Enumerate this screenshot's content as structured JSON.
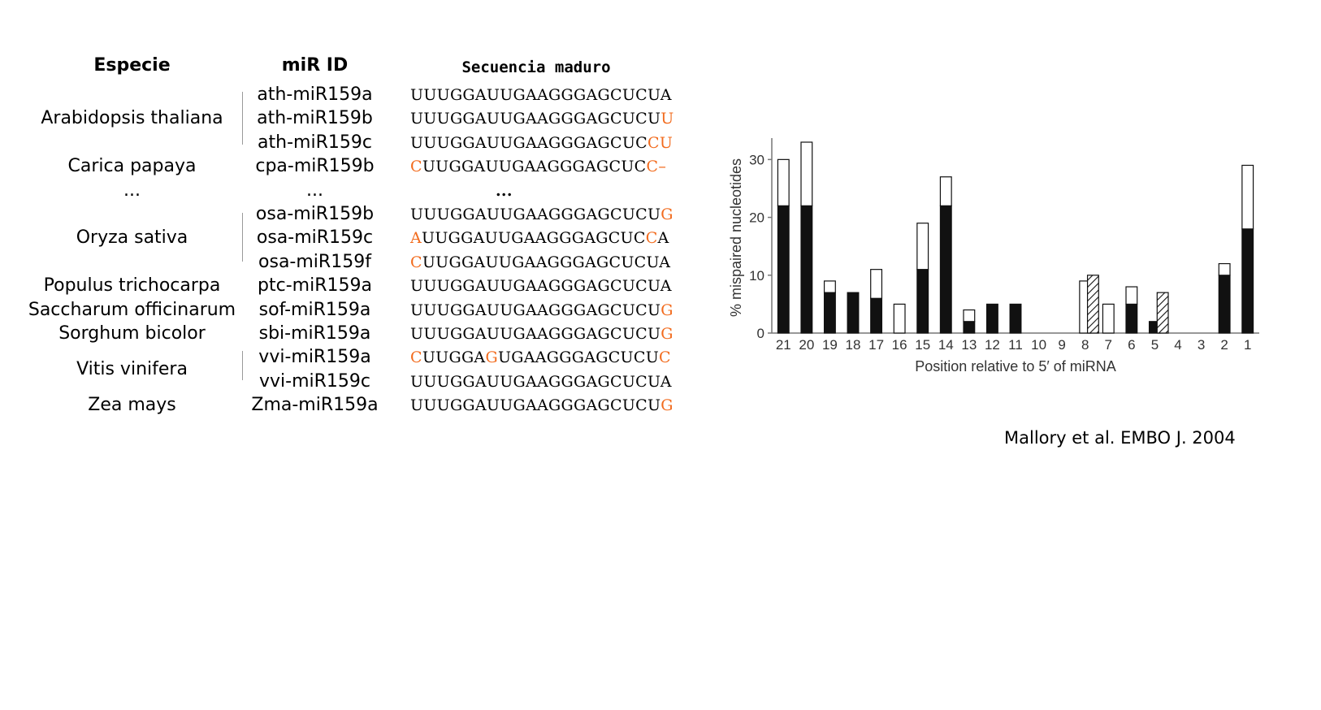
{
  "table": {
    "headers": {
      "species": "Especie",
      "mirid": "miR ID",
      "sequence": "Secuencia maduro"
    },
    "species": [
      {
        "name": "Arabidopsis thaliana",
        "row": 1
      },
      {
        "name": "Carica papaya",
        "row": 3
      },
      {
        "name": "...",
        "row": 4
      },
      {
        "name": "Oryza sativa",
        "row": 6
      },
      {
        "name": "Populus trichocarpa",
        "row": 8
      },
      {
        "name": "Saccharum officinarum",
        "row": 9
      },
      {
        "name": "Sorghum bicolor",
        "row": 10
      },
      {
        "name": "Vitis vinifera",
        "row": 11.5
      },
      {
        "name": "Zea mays",
        "row": 13
      }
    ],
    "rows": [
      {
        "id": "ath-miR159a",
        "seq": [
          [
            "UUUGGAUUGAAGGGAGCUCUA",
            false
          ]
        ]
      },
      {
        "id": "ath-miR159b",
        "seq": [
          [
            "UUUGGAUUGAAGGGAGCUCU",
            false
          ],
          [
            "U",
            true
          ]
        ]
      },
      {
        "id": "ath-miR159c",
        "seq": [
          [
            "UUUGGAUUGAAGGGAGCUC",
            false
          ],
          [
            "CU",
            true
          ]
        ]
      },
      {
        "id": "cpa-miR159b",
        "seq": [
          [
            "C",
            true
          ],
          [
            "UUGGAUUGAAGGGAGCUC",
            false
          ],
          [
            "C–",
            true
          ]
        ]
      },
      {
        "id": "...",
        "seq": [
          [
            "...",
            false
          ]
        ]
      },
      {
        "id": "osa-miR159b",
        "seq": [
          [
            "UUUGGAUUGAAGGGAGCUCU",
            false
          ],
          [
            "G",
            true
          ]
        ]
      },
      {
        "id": "osa-miR159c",
        "seq": [
          [
            "A",
            true
          ],
          [
            "UUGGAUUGAAGGGAGCUC",
            false
          ],
          [
            "C",
            true
          ],
          [
            "A",
            false
          ]
        ]
      },
      {
        "id": "osa-miR159f",
        "seq": [
          [
            "C",
            true
          ],
          [
            "UUGGAUUGAAGGGAGCUCUA",
            false
          ]
        ]
      },
      {
        "id": "ptc-miR159a",
        "seq": [
          [
            "UUUGGAUUGAAGGGAGCUCUA",
            false
          ]
        ]
      },
      {
        "id": "sof-miR159a",
        "seq": [
          [
            "UUUGGAUUGAAGGGAGCUCU",
            false
          ],
          [
            "G",
            true
          ]
        ]
      },
      {
        "id": "sbi-miR159a",
        "seq": [
          [
            "UUUGGAUUGAAGGGAGCUCU",
            false
          ],
          [
            "G",
            true
          ]
        ]
      },
      {
        "id": "vvi-miR159a",
        "seq": [
          [
            "C",
            true
          ],
          [
            "UUGGA",
            false
          ],
          [
            "G",
            true
          ],
          [
            "UGAAGGGAGCUCU",
            false
          ],
          [
            "C",
            true
          ]
        ]
      },
      {
        "id": "vvi-miR159c",
        "seq": [
          [
            "UUUGGAUUGAAGGGAGCUCUA",
            false
          ]
        ]
      },
      {
        "id": "Zma-miR159a",
        "seq": [
          [
            "UUUGGAUUGAAGGGAGCUCU",
            false
          ],
          [
            "G",
            true
          ]
        ]
      }
    ],
    "highlight_color": "#f26b1d"
  },
  "chart_data": {
    "type": "bar",
    "xlabel": "Position relative to 5′ of miRNA",
    "ylabel": "% mispaired nucleotides",
    "ylim": [
      0,
      33
    ],
    "yticks": [
      0,
      10,
      20,
      30
    ],
    "categories": [
      "21",
      "20",
      "19",
      "18",
      "17",
      "16",
      "15",
      "14",
      "13",
      "12",
      "11",
      "10",
      "9",
      "8",
      "7",
      "6",
      "5",
      "4",
      "3",
      "2",
      "1"
    ],
    "series": [
      {
        "fill": "black",
        "values": [
          22,
          22,
          7,
          7,
          6,
          0,
          11,
          22,
          2,
          5,
          5,
          0,
          0,
          0,
          0,
          5,
          2,
          0,
          0,
          10,
          18
        ]
      },
      {
        "fill": "white",
        "values": [
          8,
          11,
          2,
          0,
          5,
          5,
          8,
          5,
          2,
          0,
          0,
          0,
          0,
          9,
          5,
          3,
          0,
          0,
          0,
          2,
          11
        ]
      },
      {
        "fill": "hatched",
        "values": [
          0,
          0,
          0,
          0,
          0,
          0,
          0,
          0,
          0,
          0,
          0,
          0,
          0,
          10,
          0,
          0,
          7,
          0,
          0,
          0,
          0
        ]
      }
    ],
    "grid": false,
    "legend": "none"
  },
  "citation": "Mallory et al. EMBO J. 2004"
}
